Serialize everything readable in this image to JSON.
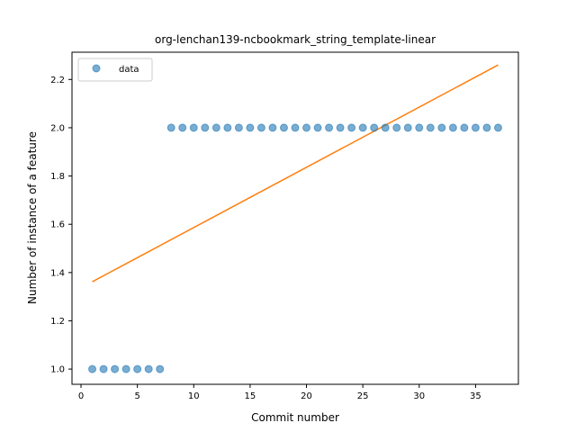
{
  "chart_data": {
    "type": "scatter",
    "title": "org-lenchan139-ncbookmark_string_template-linear",
    "xlabel": "Commit number",
    "ylabel": "Number of instance of a feature",
    "xlim": [
      -0.8,
      38.8
    ],
    "ylim": [
      0.937,
      2.313
    ],
    "xticks": [
      0,
      5,
      10,
      15,
      20,
      25,
      30,
      35
    ],
    "yticks": [
      1.0,
      1.2,
      1.4,
      1.6,
      1.8,
      2.0,
      2.2
    ],
    "grid": false,
    "legend_position": "upper-left",
    "colors": {
      "data": "#1f77b4",
      "fit": "#ff7f0e"
    },
    "series": [
      {
        "name": "data",
        "kind": "scatter",
        "x": [
          1,
          2,
          3,
          4,
          5,
          6,
          7,
          8,
          9,
          10,
          11,
          12,
          13,
          14,
          15,
          16,
          17,
          18,
          19,
          20,
          21,
          22,
          23,
          24,
          25,
          26,
          27,
          28,
          29,
          30,
          31,
          32,
          33,
          34,
          35,
          36,
          37
        ],
        "y": [
          1,
          1,
          1,
          1,
          1,
          1,
          1,
          2,
          2,
          2,
          2,
          2,
          2,
          2,
          2,
          2,
          2,
          2,
          2,
          2,
          2,
          2,
          2,
          2,
          2,
          2,
          2,
          2,
          2,
          2,
          2,
          2,
          2,
          2,
          2,
          2,
          2
        ]
      },
      {
        "kind": "line",
        "x": [
          1,
          37
        ],
        "y": [
          1.362,
          2.26
        ]
      }
    ]
  }
}
